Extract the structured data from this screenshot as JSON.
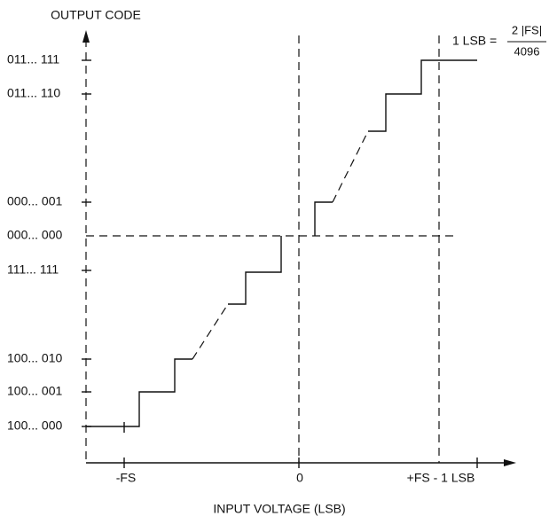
{
  "axis_labels": {
    "y": "OUTPUT CODE",
    "x": "INPUT VOLTAGE (LSB)"
  },
  "y_codes": [
    "011... 111",
    "011... 110",
    "000... 001",
    "000... 000",
    "111... 111",
    "100... 010",
    "100... 001",
    "100... 000"
  ],
  "x_labels": [
    "-FS",
    "0",
    "+FS - 1 LSB"
  ],
  "formula": {
    "lhs": "1 LSB =",
    "numerator": "2 |FS|",
    "denominator": "4096"
  }
}
